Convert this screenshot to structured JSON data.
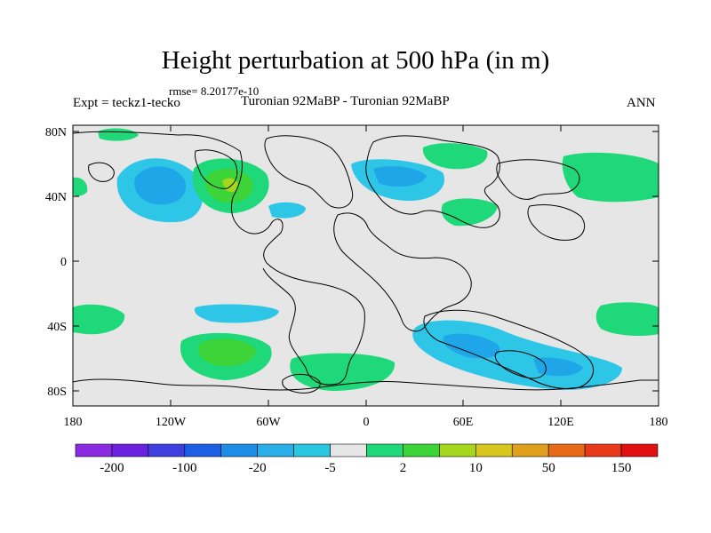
{
  "title": "Height perturbation at 500 hPa (in m)",
  "rmse": "rmse= 8.20177e-10",
  "expt": "Expt = teckz1-tecko",
  "center_label": "Turonian  92MaBP - Turonian  92MaBP",
  "season": "ANN",
  "lat_labels": [
    "80N",
    "40N",
    "0",
    "40S",
    "80S"
  ],
  "lon_labels": [
    "180",
    "120W",
    "60W",
    "0",
    "60E",
    "120E",
    "180"
  ],
  "colorbar": {
    "colors": [
      "#8a2be2",
      "#6a22e0",
      "#3f3fe0",
      "#1c5fe5",
      "#1e8de8",
      "#2aaee8",
      "#27c8e0",
      "#e6e6e6",
      "#1ed87a",
      "#3cd438",
      "#a6d61e",
      "#d6c61e",
      "#e0a01e",
      "#e66a18",
      "#e83a1a",
      "#e01010"
    ],
    "labels": [
      "-200",
      "-100",
      "-20",
      "-5",
      "2",
      "10",
      "50",
      "150"
    ]
  }
}
